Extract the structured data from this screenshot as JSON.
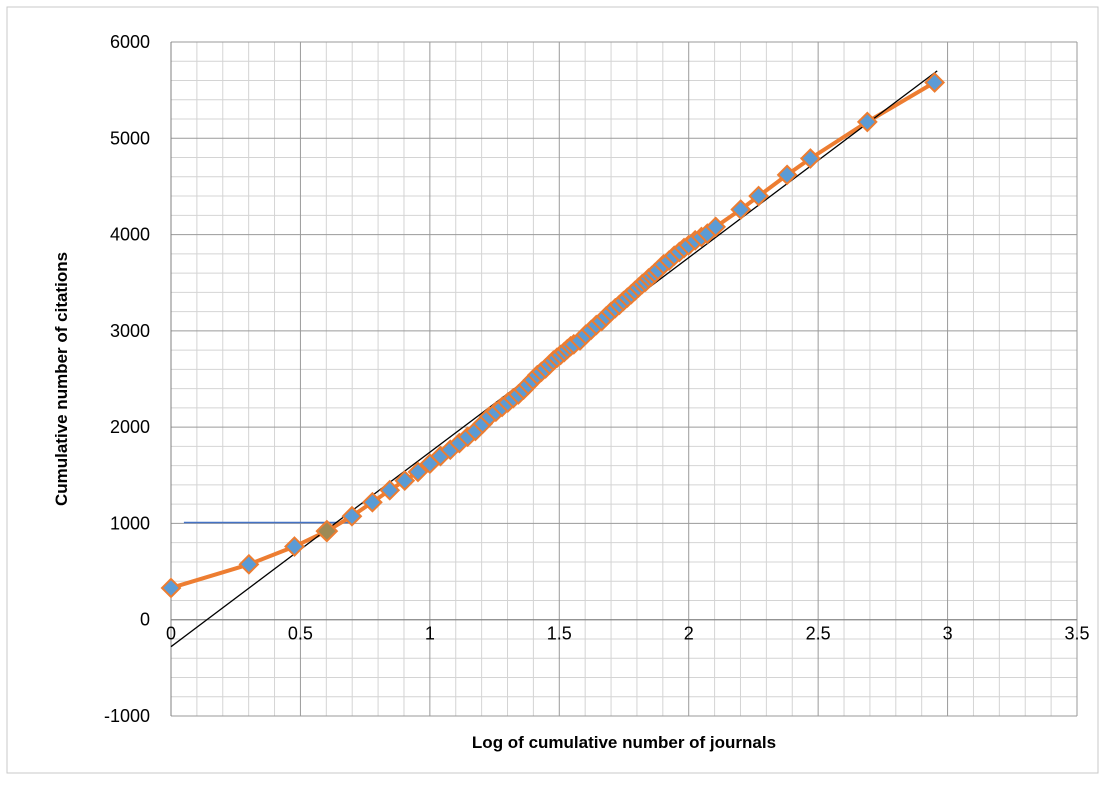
{
  "chart_data": {
    "type": "scatter",
    "title": "",
    "xlabel": "Log of cumulative number of journals",
    "ylabel": "Cumulative number of citations",
    "xlim": [
      0,
      3.5
    ],
    "ylim": [
      -1000,
      6000
    ],
    "x_ticks": [
      "0",
      "0.5",
      "1",
      "1.5",
      "2",
      "2.5",
      "3",
      "3.5"
    ],
    "y_ticks": [
      "-1000",
      "0",
      "1000",
      "2000",
      "3000",
      "4000",
      "5000",
      "6000"
    ],
    "grid": true,
    "legend": "none",
    "series": [
      {
        "type": "line-with-markers",
        "line_color": "#ED7D31",
        "marker_color": "#5B9BD5",
        "points": [
          [
            0.0,
            330
          ],
          [
            0.301,
            575
          ],
          [
            0.477,
            760
          ],
          [
            0.602,
            920
          ],
          [
            0.699,
            1075
          ],
          [
            0.778,
            1220
          ],
          [
            0.845,
            1345
          ],
          [
            0.903,
            1445
          ],
          [
            0.954,
            1535
          ],
          [
            1.0,
            1620
          ],
          [
            1.041,
            1700
          ],
          [
            1.079,
            1765
          ],
          [
            1.114,
            1835
          ],
          [
            1.146,
            1900
          ],
          [
            1.176,
            1960
          ],
          [
            1.204,
            2035
          ],
          [
            1.23,
            2110
          ],
          [
            1.255,
            2160
          ],
          [
            1.279,
            2210
          ],
          [
            1.301,
            2255
          ],
          [
            1.322,
            2300
          ],
          [
            1.342,
            2340
          ],
          [
            1.362,
            2390
          ],
          [
            1.38,
            2440
          ],
          [
            1.398,
            2490
          ],
          [
            1.415,
            2540
          ],
          [
            1.431,
            2575
          ],
          [
            1.447,
            2610
          ],
          [
            1.462,
            2650
          ],
          [
            1.477,
            2690
          ],
          [
            1.491,
            2720
          ],
          [
            1.505,
            2750
          ],
          [
            1.519,
            2780
          ],
          [
            1.531,
            2810
          ],
          [
            1.544,
            2840
          ],
          [
            1.556,
            2860
          ],
          [
            1.58,
            2900
          ],
          [
            1.602,
            2960
          ],
          [
            1.623,
            3010
          ],
          [
            1.643,
            3060
          ],
          [
            1.663,
            3100
          ],
          [
            1.681,
            3150
          ],
          [
            1.699,
            3195
          ],
          [
            1.716,
            3235
          ],
          [
            1.732,
            3270
          ],
          [
            1.748,
            3310
          ],
          [
            1.763,
            3345
          ],
          [
            1.778,
            3380
          ],
          [
            1.792,
            3415
          ],
          [
            1.806,
            3450
          ],
          [
            1.82,
            3485
          ],
          [
            1.833,
            3510
          ],
          [
            1.845,
            3545
          ],
          [
            1.857,
            3570
          ],
          [
            1.869,
            3600
          ],
          [
            1.881,
            3630
          ],
          [
            1.903,
            3690
          ],
          [
            1.924,
            3730
          ],
          [
            1.944,
            3780
          ],
          [
            1.964,
            3820
          ],
          [
            1.982,
            3860
          ],
          [
            2.0,
            3890
          ],
          [
            2.025,
            3940
          ],
          [
            2.049,
            3975
          ],
          [
            2.072,
            4010
          ],
          [
            2.104,
            4080
          ],
          [
            2.201,
            4260
          ],
          [
            2.27,
            4400
          ],
          [
            2.38,
            4620
          ],
          [
            2.47,
            4790
          ],
          [
            2.69,
            5170
          ],
          [
            2.95,
            5580
          ]
        ]
      },
      {
        "type": "trendline",
        "line_color": "#000000",
        "points": [
          [
            0.0,
            -280
          ],
          [
            2.96,
            5700
          ]
        ]
      },
      {
        "type": "reference-line",
        "line_color": "#4472C4",
        "points": [
          [
            0.05,
            1010
          ],
          [
            0.7,
            1010
          ]
        ]
      }
    ],
    "highlight_point": {
      "point": [
        0.602,
        920
      ],
      "color": "#9E8A55"
    }
  }
}
